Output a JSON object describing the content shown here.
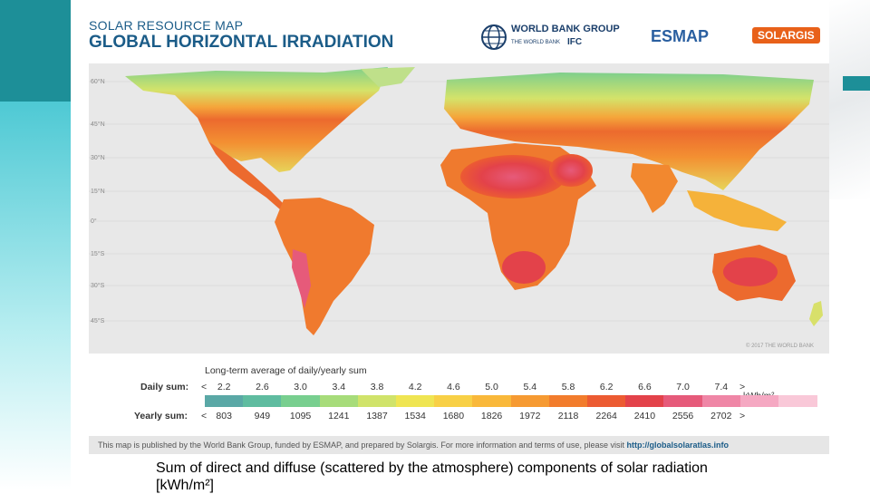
{
  "header": {
    "title_small": "SOLAR RESOURCE MAP",
    "title_large": "GLOBAL HORIZONTAL IRRADIATION"
  },
  "logos": {
    "world_bank": "WORLD BANK GROUP",
    "world_bank_sub": "THE WORLD BANK",
    "ifc": "IFC",
    "esmap": "ESMAP",
    "solargis": "SOLARGIS"
  },
  "map": {
    "latitude_labels": [
      "60°N",
      "45°N",
      "30°N",
      "15°N",
      "0°",
      "15°S",
      "30°S",
      "45°S"
    ],
    "copyright": "© 2017 THE WORLD BANK"
  },
  "legend": {
    "title": "Long-term average of daily/yearly sum",
    "daily_label": "Daily sum:",
    "yearly_label": "Yearly sum:",
    "less": "<",
    "more": ">",
    "daily_values": [
      "2.2",
      "2.6",
      "3.0",
      "3.4",
      "3.8",
      "4.2",
      "4.6",
      "5.0",
      "5.4",
      "5.8",
      "6.2",
      "6.6",
      "7.0",
      "7.4"
    ],
    "yearly_values": [
      "803",
      "949",
      "1095",
      "1241",
      "1387",
      "1534",
      "1680",
      "1826",
      "1972",
      "2118",
      "2264",
      "2410",
      "2556",
      "2702"
    ],
    "unit": "kWh/m²",
    "colors": [
      "#5aa8a6",
      "#5fbca0",
      "#78cf8f",
      "#a7dc7a",
      "#d0e36a",
      "#efe552",
      "#f8d046",
      "#f9b83a",
      "#f69a32",
      "#f27c2c",
      "#ec5b32",
      "#e3424a",
      "#e65a7a",
      "#ef86a6",
      "#f5a8c2",
      "#f9c8d8"
    ]
  },
  "footer": {
    "text": "This map is published by the World Bank Group, funded by ESMAP, and prepared by Solargis. For more information and terms of use, please visit",
    "link": "http://globalsolaratlas.info"
  },
  "caption": {
    "line1": "Sum of direct and diffuse (scattered by the atmosphere) components of solar",
    "line2": "radiation [kWh/m²]"
  }
}
